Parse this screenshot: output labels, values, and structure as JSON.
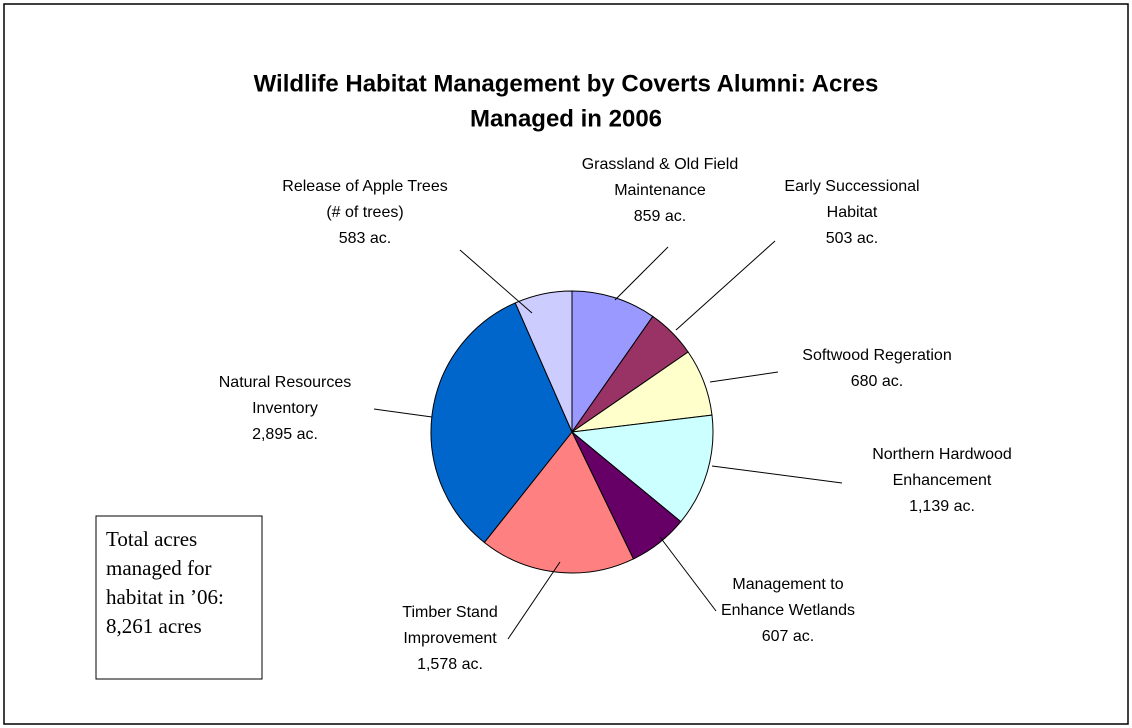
{
  "chart_data": {
    "type": "pie",
    "title": [
      "Wildlife Habitat Management by Coverts Alumni: Acres",
      "Managed in 2006"
    ],
    "categories": [
      [
        "Grassland & Old Field",
        "Maintenance"
      ],
      [
        "Early Successional",
        "Habitat"
      ],
      [
        "Softwood Regeration"
      ],
      [
        "Northern Hardwood",
        "Enhancement"
      ],
      [
        "Management to",
        "Enhance Wetlands"
      ],
      [
        "Timber Stand",
        "Improvement"
      ],
      [
        "Natural Resources",
        "Inventory"
      ],
      [
        "Release of Apple Trees",
        "(# of trees)"
      ]
    ],
    "values": [
      859,
      503,
      680,
      1139,
      607,
      1578,
      2895,
      583
    ],
    "value_labels": [
      "859 ac.",
      "503 ac.",
      "680 ac.",
      "1,139 ac.",
      "607 ac.",
      "1,578 ac.",
      "2,895 ac.",
      "583 ac."
    ],
    "colors": [
      "#9999ff",
      "#993366",
      "#ffffcc",
      "#ccffff",
      "#660066",
      "#ff8080",
      "#0066cc",
      "#ccccff"
    ],
    "annotation": [
      "Total acres",
      "managed for",
      "habitat in ’06:",
      "8,261 acres"
    ]
  }
}
